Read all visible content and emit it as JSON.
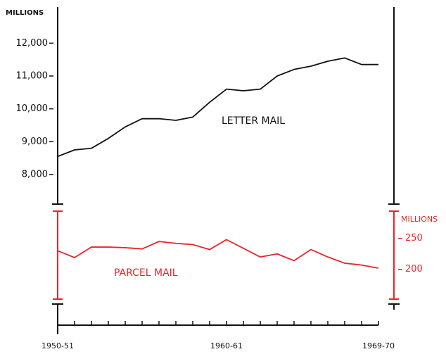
{
  "chart_data": {
    "type": "line",
    "categories": [
      "1950-51",
      null,
      null,
      null,
      null,
      null,
      null,
      null,
      null,
      null,
      "1960-61",
      null,
      null,
      null,
      null,
      null,
      null,
      null,
      null,
      "1969-70"
    ],
    "series": [
      {
        "name": "LETTER MAIL",
        "color": "#111111",
        "values": [
          8550,
          8750,
          8800,
          9100,
          9450,
          9700,
          9700,
          9650,
          9750,
          10200,
          10600,
          10550,
          10600,
          11000,
          11200,
          11300,
          11450,
          11550,
          11350,
          11350
        ]
      },
      {
        "name": "PARCEL MAIL",
        "color": "#e8262b",
        "axis": "y2",
        "values": [
          230,
          219,
          236,
          236,
          235,
          233,
          245,
          242,
          240,
          232,
          248,
          234,
          220,
          225,
          214,
          232,
          220,
          210,
          207,
          202
        ]
      }
    ],
    "y_label": "MILLIONS",
    "y2_label": "MILLIONS",
    "ylim": [
      7100,
      13100
    ],
    "yticks": [
      {
        "value": 8000,
        "label": "8,000"
      },
      {
        "value": 9000,
        "label": "9,000"
      },
      {
        "value": 10000,
        "label": "10,000"
      },
      {
        "value": 11000,
        "label": "11,000"
      },
      {
        "value": 12000,
        "label": "12,000"
      }
    ],
    "y2lim": [
      152,
      294
    ],
    "y2ticks": [
      200,
      250
    ]
  }
}
